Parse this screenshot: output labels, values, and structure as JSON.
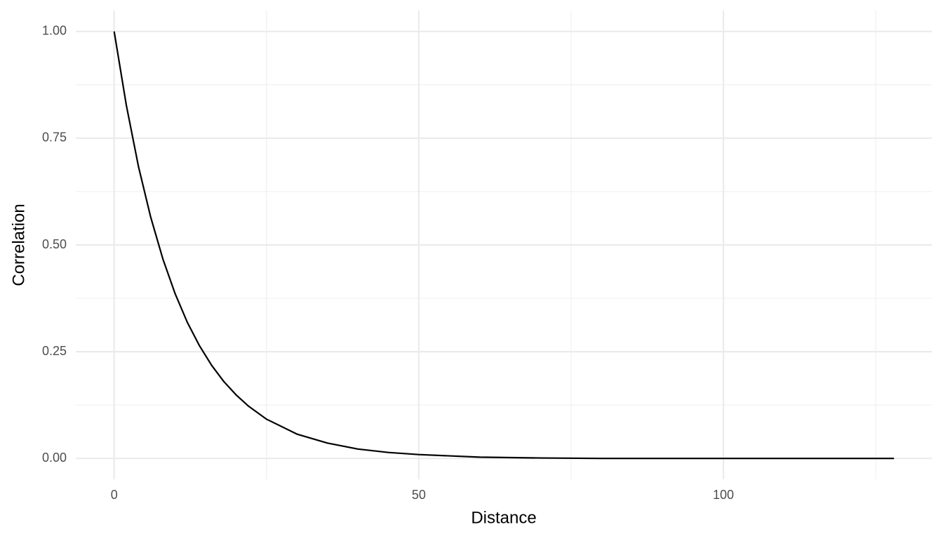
{
  "chart_data": {
    "type": "line",
    "x_label": "Distance",
    "y_label": "Correlation",
    "x": [
      0,
      2,
      4,
      6,
      8,
      10,
      12,
      14,
      16,
      18,
      20,
      22,
      25,
      30,
      35,
      40,
      45,
      50,
      60,
      70,
      80,
      90,
      100,
      110,
      120,
      128
    ],
    "values": [
      1,
      0.827,
      0.683,
      0.565,
      0.467,
      0.386,
      0.319,
      0.264,
      0.218,
      0.18,
      0.149,
      0.123,
      0.092,
      0.057,
      0.036,
      0.022,
      0.014,
      0.009,
      0.003,
      0.001,
      0,
      0,
      0,
      0,
      0,
      0
    ],
    "color": "#000000",
    "xlim": [
      -6.3,
      134.2
    ],
    "ylim": [
      -0.049,
      1.049
    ],
    "xticks": [
      0,
      50,
      100
    ],
    "yticks": [
      {
        "value": 0,
        "label": "0.00"
      },
      {
        "value": 0.25,
        "label": "0.25"
      },
      {
        "value": 0.5,
        "label": "0.50"
      },
      {
        "value": 0.75,
        "label": "0.75"
      },
      {
        "value": 1,
        "label": "1.00"
      }
    ],
    "x_minor_grid": [
      25,
      75,
      125
    ],
    "y_minor_grid": [
      0.125,
      0.375,
      0.625,
      0.875
    ],
    "grid": true
  }
}
